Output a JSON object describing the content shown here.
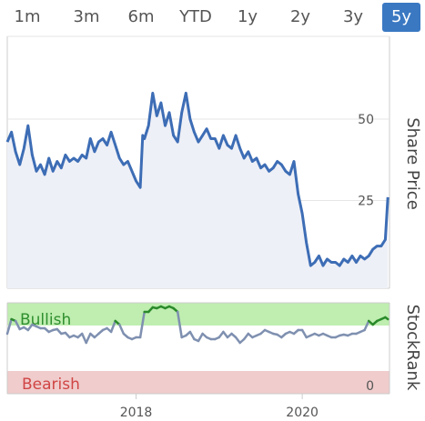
{
  "tabs": [
    {
      "label": "1m",
      "active": false
    },
    {
      "label": "3m",
      "active": false
    },
    {
      "label": "6m",
      "active": false
    },
    {
      "label": "YTD",
      "active": false
    },
    {
      "label": "1y",
      "active": false
    },
    {
      "label": "2y",
      "active": false
    },
    {
      "label": "3y",
      "active": false
    },
    {
      "label": "5y",
      "active": true
    }
  ],
  "colors": {
    "accent": "#3a78c2",
    "price_line": "#3d6db5",
    "price_fill": "#eef0f7",
    "bull_band": "#bfeeb0",
    "bear_band": "#f0cccc",
    "bull_text": "#2f8f2f",
    "bear_text": "#d04545",
    "rank_line": "#7f90b0",
    "rank_bull_line": "#2a8a2a"
  },
  "chart_data": [
    {
      "type": "line",
      "name": "share-price",
      "ylabel": "Share Price",
      "ylim": [
        0,
        62
      ],
      "yticks": [
        50,
        25,
        0
      ],
      "xlim": [
        2016.45,
        2021.05
      ],
      "grid": true,
      "x": [
        2016.45,
        2016.5,
        2016.55,
        2016.6,
        2016.65,
        2016.7,
        2016.75,
        2016.8,
        2016.85,
        2016.9,
        2016.95,
        2017.0,
        2017.05,
        2017.1,
        2017.15,
        2017.2,
        2017.25,
        2017.3,
        2017.35,
        2017.4,
        2017.45,
        2017.5,
        2017.55,
        2017.6,
        2017.65,
        2017.7,
        2017.75,
        2017.8,
        2017.85,
        2017.9,
        2017.95,
        2018.0,
        2018.05,
        2018.08,
        2018.1,
        2018.15,
        2018.2,
        2018.25,
        2018.3,
        2018.35,
        2018.4,
        2018.45,
        2018.5,
        2018.55,
        2018.6,
        2018.65,
        2018.7,
        2018.75,
        2018.8,
        2018.85,
        2018.9,
        2018.95,
        2019.0,
        2019.05,
        2019.1,
        2019.15,
        2019.2,
        2019.25,
        2019.3,
        2019.35,
        2019.4,
        2019.45,
        2019.5,
        2019.55,
        2019.6,
        2019.65,
        2019.7,
        2019.75,
        2019.8,
        2019.85,
        2019.9,
        2019.95,
        2020.0,
        2020.05,
        2020.1,
        2020.15,
        2020.2,
        2020.25,
        2020.3,
        2020.35,
        2020.4,
        2020.45,
        2020.5,
        2020.55,
        2020.6,
        2020.65,
        2020.7,
        2020.75,
        2020.8,
        2020.85,
        2020.9,
        2020.95,
        2021.0,
        2021.03
      ],
      "y": [
        43,
        46,
        40,
        36,
        41,
        48,
        39,
        34,
        36,
        33,
        38,
        34,
        37,
        35,
        39,
        37,
        38,
        37,
        39,
        38,
        44,
        40,
        43,
        44,
        42,
        46,
        42,
        38,
        36,
        37,
        34,
        31,
        29,
        45,
        44,
        48,
        58,
        51,
        55,
        48,
        52,
        45,
        43,
        52,
        58,
        50,
        46,
        43,
        45,
        47,
        44,
        44,
        41,
        45,
        42,
        41,
        45,
        41,
        38,
        40,
        37,
        38,
        35,
        36,
        34,
        35,
        37,
        36,
        34,
        33,
        37,
        27,
        21,
        12,
        5,
        6,
        8,
        5,
        7,
        6,
        6,
        5,
        7,
        6,
        8,
        6,
        8,
        7,
        8,
        10,
        11,
        11,
        13,
        26
      ]
    },
    {
      "type": "line",
      "name": "stockrank",
      "ylabel": "StockRank",
      "ylim": [
        0,
        100
      ],
      "yticks": [
        0
      ],
      "xticks": [
        "2018",
        "2020"
      ],
      "bands": [
        {
          "label": "Bullish",
          "from": 75,
          "to": 100
        },
        {
          "label": "Bearish",
          "from": 0,
          "to": 25
        }
      ],
      "x": [
        2016.45,
        2016.5,
        2016.55,
        2016.6,
        2016.65,
        2016.7,
        2016.75,
        2016.8,
        2016.85,
        2016.9,
        2016.95,
        2017.0,
        2017.05,
        2017.1,
        2017.15,
        2017.2,
        2017.25,
        2017.3,
        2017.35,
        2017.4,
        2017.45,
        2017.5,
        2017.55,
        2017.6,
        2017.65,
        2017.7,
        2017.75,
        2017.8,
        2017.85,
        2017.9,
        2017.95,
        2018.0,
        2018.05,
        2018.1,
        2018.15,
        2018.2,
        2018.25,
        2018.3,
        2018.35,
        2018.4,
        2018.45,
        2018.5,
        2018.55,
        2018.6,
        2018.65,
        2018.7,
        2018.75,
        2018.8,
        2018.85,
        2018.9,
        2018.95,
        2019.0,
        2019.05,
        2019.1,
        2019.15,
        2019.2,
        2019.25,
        2019.3,
        2019.35,
        2019.4,
        2019.45,
        2019.5,
        2019.55,
        2019.6,
        2019.65,
        2019.7,
        2019.75,
        2019.8,
        2019.85,
        2019.9,
        2019.95,
        2020.0,
        2020.05,
        2020.1,
        2020.15,
        2020.2,
        2020.25,
        2020.3,
        2020.35,
        2020.4,
        2020.45,
        2020.5,
        2020.55,
        2020.6,
        2020.65,
        2020.7,
        2020.75,
        2020.8,
        2020.85,
        2020.9,
        2020.95,
        2021.0,
        2021.03
      ],
      "y": [
        66,
        82,
        80,
        71,
        73,
        70,
        76,
        74,
        72,
        72,
        68,
        70,
        71,
        66,
        67,
        62,
        64,
        62,
        66,
        56,
        66,
        62,
        66,
        70,
        72,
        68,
        80,
        76,
        66,
        62,
        60,
        62,
        62,
        90,
        90,
        95,
        94,
        96,
        94,
        96,
        94,
        90,
        62,
        64,
        68,
        60,
        58,
        66,
        62,
        60,
        60,
        62,
        68,
        62,
        66,
        62,
        56,
        60,
        66,
        62,
        64,
        66,
        70,
        68,
        66,
        65,
        62,
        66,
        68,
        66,
        70,
        70,
        62,
        64,
        66,
        64,
        66,
        64,
        62,
        62,
        64,
        65,
        64,
        66,
        66,
        68,
        70,
        80,
        76,
        80,
        82,
        84,
        82
      ]
    }
  ]
}
